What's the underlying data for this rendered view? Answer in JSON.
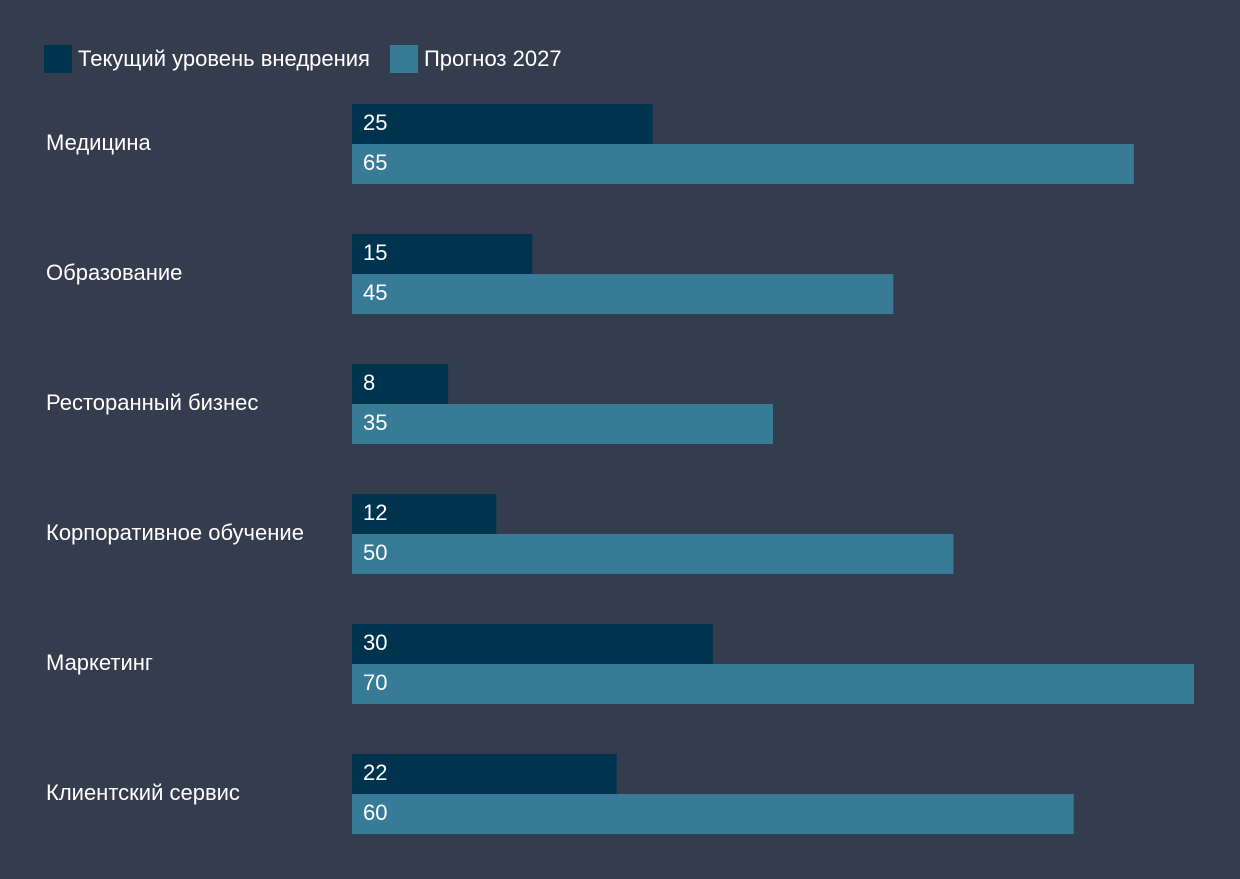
{
  "chart_data": {
    "type": "bar",
    "orientation": "horizontal",
    "categories": [
      "Медицина",
      "Образование",
      "Ресторанный бизнес",
      "Корпоративное обучение",
      "Маркетинг",
      "Клиентский сервис"
    ],
    "series": [
      {
        "name": "Текущий уровень внедрения",
        "color": "#00334e",
        "values": [
          25,
          15,
          8,
          12,
          30,
          22
        ]
      },
      {
        "name": "Прогноз 2027",
        "color": "#377b97",
        "values": [
          65,
          45,
          35,
          50,
          70,
          60
        ]
      }
    ],
    "xlim": [
      0,
      70
    ],
    "grid": false,
    "legend_position": "top-left",
    "data_labels": "inside-start",
    "background": "#343d4e",
    "text_color": "#ffffff"
  }
}
